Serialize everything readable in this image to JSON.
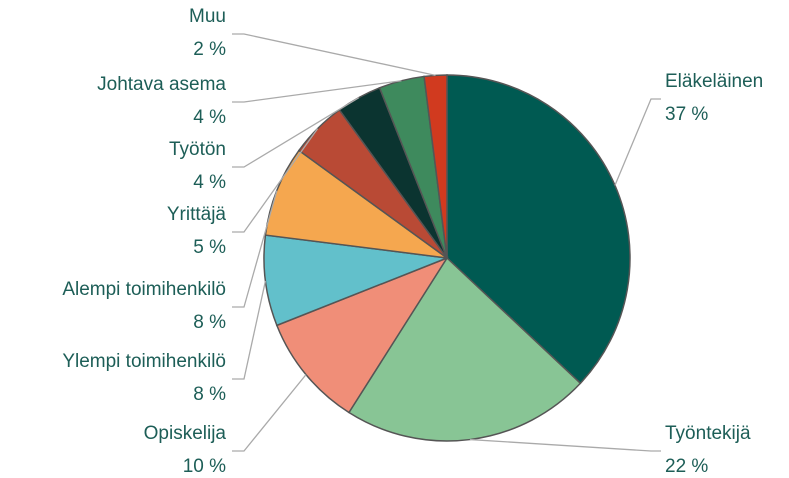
{
  "chart_data": {
    "type": "pie",
    "categories": [
      "Eläkeläinen",
      "Työntekijä",
      "Opiskelija",
      "Ylempi toimihenkilö",
      "Alempi toimihenkilö",
      "Yrittäjä",
      "Työtön",
      "Johtava asema",
      "Muu"
    ],
    "values": [
      37,
      22,
      10,
      8,
      8,
      5,
      4,
      4,
      2
    ],
    "value_labels": [
      "37 %",
      "22 %",
      "10 %",
      "8 %",
      "8 %",
      "5 %",
      "4 %",
      "4 %",
      "2 %"
    ],
    "colors": [
      "#005a52",
      "#88c595",
      "#f08e78",
      "#62c0cb",
      "#f5a74f",
      "#b94a35",
      "#0b3430",
      "#3e8a5d",
      "#d13a1f"
    ]
  }
}
